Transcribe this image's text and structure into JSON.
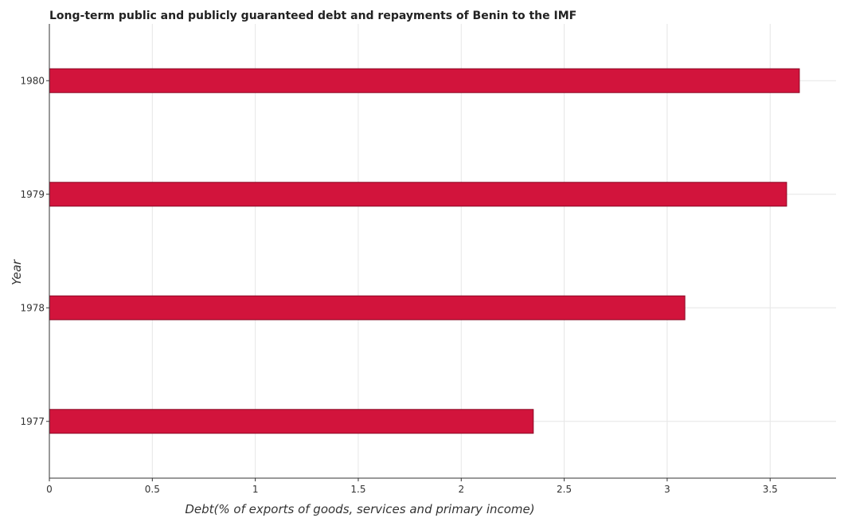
{
  "chart_data": {
    "type": "bar",
    "orientation": "horizontal",
    "title": "Long-term public and publicly guaranteed debt and repayments of Benin to the IMF",
    "xlabel": "Debt(% of exports of goods, services and primary income)",
    "ylabel": "Year",
    "categories": [
      "1977",
      "1978",
      "1979",
      "1980"
    ],
    "values": [
      2.35,
      3.086,
      3.58,
      3.642
    ],
    "xlim": [
      0,
      3.82
    ],
    "xticks": [
      "0",
      "0.5",
      "1",
      "1.5",
      "2",
      "2.5",
      "3",
      "3.5"
    ],
    "grid": true,
    "bar_color": "#d2143c",
    "bar_edge_color": "#8b0a26"
  }
}
